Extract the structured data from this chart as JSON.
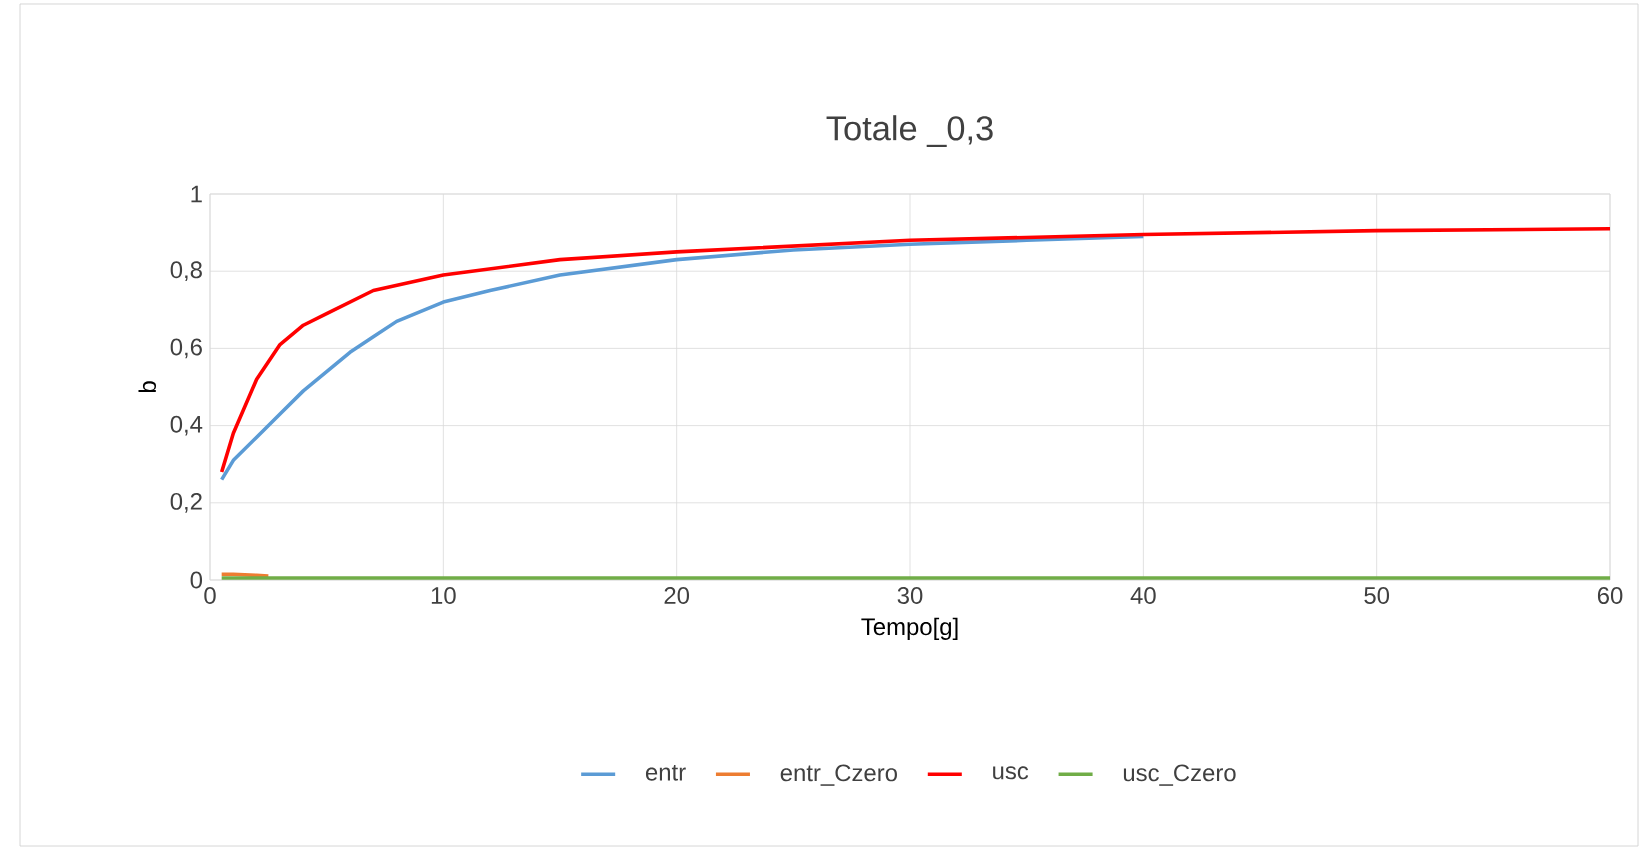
{
  "chart_data": {
    "type": "line",
    "title": "Totale _0,3",
    "xlabel": "Tempo[g]",
    "ylabel": "b",
    "xlim": [
      0,
      60
    ],
    "ylim": [
      0,
      1
    ],
    "xticks": [
      0,
      10,
      20,
      30,
      40,
      50,
      60
    ],
    "yticks": [
      0,
      {
        "value": 0.2,
        "label": "0,2"
      },
      {
        "value": 0.4,
        "label": "0,4"
      },
      {
        "value": 0.6,
        "label": "0,6"
      },
      {
        "value": 0.8,
        "label": "0,8"
      },
      1
    ],
    "grid": true,
    "legend": "bottom",
    "marker": "none",
    "line_style": "solid",
    "series": [
      {
        "name": "entr",
        "color": "#5b9bd5",
        "x": [
          0.5,
          1,
          2,
          3,
          4,
          5,
          6,
          7,
          8,
          10,
          12,
          15,
          20,
          25,
          30,
          35,
          40
        ],
        "values": [
          0.26,
          0.31,
          0.37,
          0.43,
          0.49,
          0.54,
          0.59,
          0.63,
          0.67,
          0.72,
          0.75,
          0.79,
          0.83,
          0.855,
          0.87,
          0.88,
          0.89
        ]
      },
      {
        "name": "entr_Czero",
        "color": "#ed7d31",
        "x": [
          0.5,
          1,
          2,
          2.5
        ],
        "values": [
          0.015,
          0.015,
          0.012,
          0.01
        ]
      },
      {
        "name": "usc",
        "color": "#ff0000",
        "x": [
          0.5,
          1,
          2,
          3,
          4,
          5,
          7,
          10,
          15,
          20,
          30,
          40,
          50,
          60
        ],
        "values": [
          0.28,
          0.38,
          0.52,
          0.61,
          0.66,
          0.69,
          0.75,
          0.79,
          0.83,
          0.85,
          0.88,
          0.895,
          0.905,
          0.91
        ]
      },
      {
        "name": "usc_Czero",
        "color": "#70ad47",
        "x": [
          0.5,
          60
        ],
        "values": [
          0.005,
          0.005
        ]
      }
    ]
  }
}
